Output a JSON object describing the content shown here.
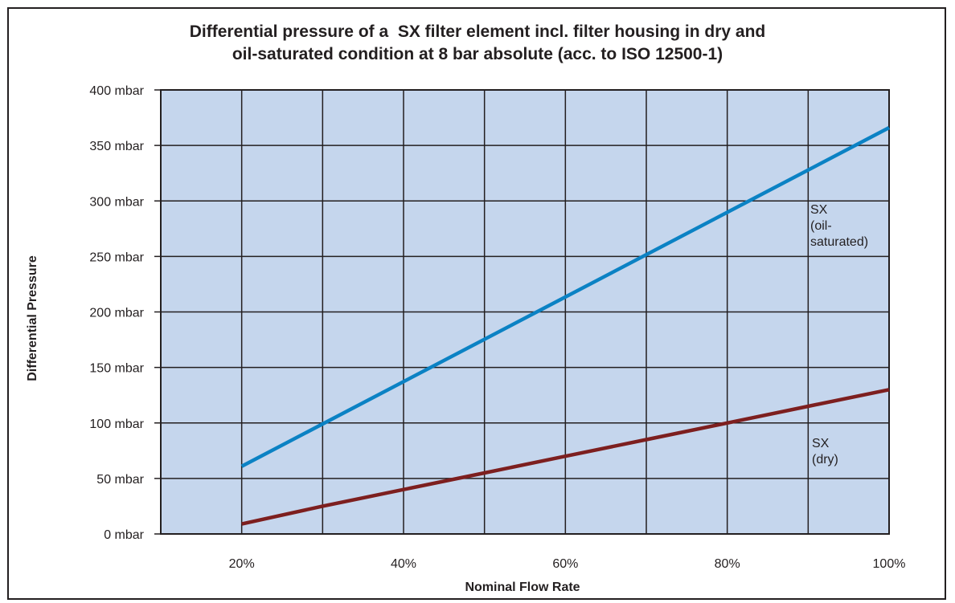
{
  "chart_data": {
    "type": "line",
    "title_line1": "Differential pressure of a  SX filter element incl. filter housing in dry and",
    "title_line2": "oil-saturated condition at 8 bar absolute (acc. to ISO 12500-1)",
    "xlabel": "Nominal Flow Rate",
    "ylabel": "Differential Pressure",
    "xlim": [
      10,
      100
    ],
    "ylim": [
      0,
      400
    ],
    "x_ticks": [
      {
        "value": 20,
        "label": "20%"
      },
      {
        "value": 40,
        "label": "40%"
      },
      {
        "value": 60,
        "label": "60%"
      },
      {
        "value": 80,
        "label": "80%"
      },
      {
        "value": 100,
        "label": "100%"
      }
    ],
    "y_ticks": [
      {
        "value": 0,
        "label": "0 mbar"
      },
      {
        "value": 50,
        "label": "50 mbar"
      },
      {
        "value": 100,
        "label": "100 mbar"
      },
      {
        "value": 150,
        "label": "150 mbar"
      },
      {
        "value": 200,
        "label": "200 mbar"
      },
      {
        "value": 250,
        "label": "250 mbar"
      },
      {
        "value": 300,
        "label": "300 mbar"
      },
      {
        "value": 350,
        "label": "350 mbar"
      },
      {
        "value": 400,
        "label": "400 mbar"
      }
    ],
    "grid": true,
    "plot_background": "#c5d6ed",
    "series": [
      {
        "name_lines": [
          "SX",
          "(oil-",
          "saturated)"
        ],
        "color": "#0b82c4",
        "x": [
          20,
          100
        ],
        "y": [
          61,
          366
        ]
      },
      {
        "name_lines": [
          "SX",
          "(dry)"
        ],
        "color": "#7d1f1f",
        "x": [
          20,
          30,
          40,
          50,
          60,
          70,
          80,
          90,
          100
        ],
        "y": [
          9,
          25,
          40,
          55,
          70,
          85,
          100,
          115,
          130
        ]
      }
    ]
  }
}
